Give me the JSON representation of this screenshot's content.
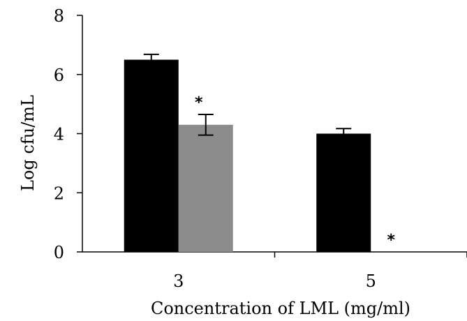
{
  "chart_data": {
    "type": "bar",
    "categories": [
      "3",
      "5"
    ],
    "series": [
      {
        "values": [
          6.5,
          4.0
        ],
        "errors": [
          0.18,
          0.17
        ],
        "color": "#000000"
      },
      {
        "values": [
          4.3,
          0.0
        ],
        "errors": [
          0.35,
          null
        ],
        "color": "#8c8c8c"
      }
    ],
    "significance_markers": [
      {
        "category": "3",
        "series_index": 1,
        "text": "*"
      },
      {
        "category": "5",
        "series_index": 1,
        "text": "*"
      }
    ],
    "ylim": [
      0,
      8
    ],
    "yticks": [
      "0",
      "2",
      "4",
      "6",
      "8"
    ],
    "xlabel": "Concentration of LML (mg/ml)",
    "ylabel": "Log cfu/mL",
    "title": "",
    "grid": false
  }
}
